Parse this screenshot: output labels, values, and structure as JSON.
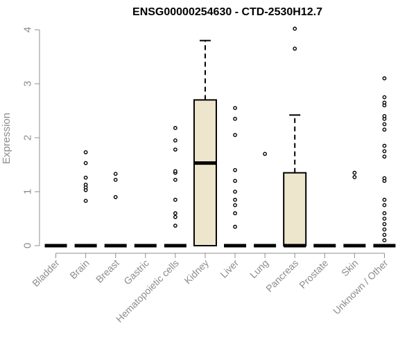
{
  "chart_data": {
    "type": "boxplot",
    "title": "ENSG00000254630 - CTD-2530H12.7",
    "ylabel": "Expression",
    "xlabel": "",
    "ylim": [
      0,
      4
    ],
    "yticks": [
      "0",
      "1",
      "2",
      "3",
      "4"
    ],
    "categories": [
      "Bladder",
      "Brain",
      "Breast",
      "Gastric",
      "Hematopoietic cells",
      "Kidney",
      "Liver",
      "Lung",
      "Pancreas",
      "Prostate",
      "Skin",
      "Unknown / Other"
    ],
    "box_fill": "#ede6cc",
    "series": [
      {
        "min": 0,
        "q1": 0,
        "median": 0,
        "q3": 0,
        "max": 0,
        "outliers": []
      },
      {
        "min": 0,
        "q1": 0,
        "median": 0,
        "q3": 0,
        "max": 0,
        "outliers": [
          0.83,
          1.03,
          1.08,
          1.13,
          1.26,
          1.53,
          1.73
        ]
      },
      {
        "min": 0,
        "q1": 0,
        "median": 0,
        "q3": 0,
        "max": 0,
        "outliers": [
          0.9,
          1.22,
          1.33
        ]
      },
      {
        "min": 0,
        "q1": 0,
        "median": 0,
        "q3": 0,
        "max": 0,
        "outliers": []
      },
      {
        "min": 0,
        "q1": 0,
        "median": 0,
        "q3": 0,
        "max": 0,
        "outliers": [
          0.37,
          0.53,
          0.6,
          0.85,
          1.22,
          1.35,
          1.38,
          1.78,
          1.95,
          2.18
        ]
      },
      {
        "min": 0,
        "q1": 0,
        "median": 1.53,
        "q3": 2.7,
        "max": 3.8,
        "outliers": []
      },
      {
        "min": 0,
        "q1": 0,
        "median": 0,
        "q3": 0,
        "max": 0,
        "outliers": [
          0.35,
          0.6,
          0.75,
          0.85,
          1.0,
          1.2,
          1.4,
          2.05,
          2.35,
          2.55
        ]
      },
      {
        "min": 0,
        "q1": 0,
        "median": 0,
        "q3": 0,
        "max": 0,
        "outliers": [
          1.7
        ]
      },
      {
        "min": 0,
        "q1": 0,
        "median": 0,
        "q3": 1.35,
        "max": 2.42,
        "outliers": [
          3.65,
          4.02
        ]
      },
      {
        "min": 0,
        "q1": 0,
        "median": 0,
        "q3": 0,
        "max": 0,
        "outliers": []
      },
      {
        "min": 0,
        "q1": 0,
        "median": 0,
        "q3": 0,
        "max": 0,
        "outliers": [
          1.27,
          1.35
        ]
      },
      {
        "min": 0,
        "q1": 0,
        "median": 0,
        "q3": 0,
        "max": 0,
        "outliers": [
          0.1,
          0.2,
          0.3,
          0.4,
          0.5,
          0.6,
          0.75,
          0.85,
          1.2,
          1.25,
          1.65,
          1.75,
          1.85,
          2.15,
          2.25,
          2.35,
          2.4,
          2.6,
          2.65,
          2.75,
          3.1
        ]
      }
    ]
  }
}
